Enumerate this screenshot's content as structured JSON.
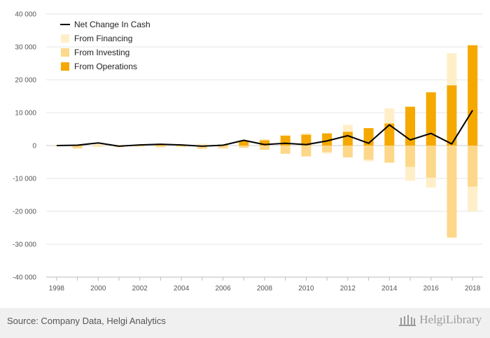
{
  "chart_data": {
    "type": "bar",
    "title": "",
    "xlabel": "",
    "ylabel": "",
    "ylim": [
      -40000,
      40000
    ],
    "yticks": [
      40000,
      30000,
      20000,
      10000,
      0,
      -10000,
      -20000,
      -30000,
      -40000
    ],
    "ytick_labels": [
      "40 000",
      "30 000",
      "20 000",
      "10 000",
      "0",
      "-10 000",
      "-20 000",
      "-30 000",
      "-40 000"
    ],
    "categories": [
      1998,
      1999,
      2000,
      2001,
      2002,
      2003,
      2004,
      2005,
      2006,
      2007,
      2008,
      2009,
      2010,
      2011,
      2012,
      2013,
      2014,
      2015,
      2016,
      2017,
      2018
    ],
    "xtick_labels": [
      "1998",
      "2000",
      "2002",
      "2004",
      "2006",
      "2008",
      "2010",
      "2012",
      "2014",
      "2016",
      "2018"
    ],
    "series": [
      {
        "name": "From Operations",
        "type": "bar",
        "color": "#f5a800",
        "values": [
          0,
          -100,
          0,
          -200,
          200,
          300,
          200,
          -100,
          300,
          1500,
          1600,
          3000,
          3300,
          3700,
          4200,
          5300,
          6700,
          11800,
          16200,
          18300,
          30500
        ]
      },
      {
        "name": "From Investing",
        "type": "bar",
        "color": "#fdd88a",
        "values": [
          -100,
          -800,
          -300,
          -300,
          -300,
          -400,
          -400,
          -900,
          -800,
          -700,
          -1300,
          -2500,
          -3300,
          -2000,
          -3600,
          -4300,
          -5200,
          -6500,
          -9800,
          -28000,
          -12500
        ]
      },
      {
        "name": "From Financing",
        "type": "bar",
        "color": "#ffefc9",
        "values": [
          -100,
          400,
          700,
          200,
          100,
          -200,
          0,
          600,
          -200,
          200,
          300,
          300,
          500,
          -400,
          2100,
          -500,
          4600,
          -4200,
          -3000,
          9800,
          -7500
        ]
      },
      {
        "name": "Net Change In Cash",
        "type": "line",
        "color": "#000000",
        "values": [
          0,
          100,
          800,
          -200,
          200,
          400,
          200,
          -200,
          100,
          1600,
          300,
          700,
          300,
          1400,
          3000,
          700,
          6300,
          1700,
          3700,
          500,
          10700
        ]
      }
    ],
    "legend": [
      "Net Change In Cash",
      "From Financing",
      "From Investing",
      "From Operations"
    ],
    "legend_position": "top-left",
    "grid": true
  },
  "footer": {
    "source": "Source: Company Data, Helgi Analytics",
    "logo": "HelgiLibrary"
  }
}
